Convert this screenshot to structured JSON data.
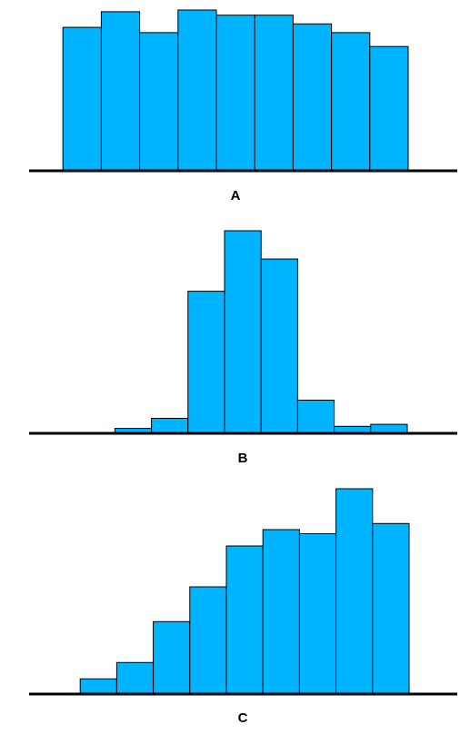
{
  "colors": {
    "bar_fill": "#00b4ff",
    "bar_stroke": "#000000",
    "axis": "#000000"
  },
  "chart_data": [
    {
      "type": "bar",
      "label": "A",
      "values": [
        0,
        82,
        91,
        79,
        92,
        89,
        89,
        84,
        79,
        71
      ],
      "xlabel": "",
      "ylabel": ""
    },
    {
      "type": "bar",
      "label": "B",
      "values": [
        0,
        0,
        2,
        7,
        70,
        100,
        86,
        16,
        3,
        4
      ],
      "xlabel": "",
      "ylabel": ""
    },
    {
      "type": "bar",
      "label": "C",
      "values": [
        0,
        7,
        15,
        35,
        52,
        72,
        80,
        78,
        100,
        83
      ],
      "xlabel": "",
      "ylabel": ""
    }
  ]
}
